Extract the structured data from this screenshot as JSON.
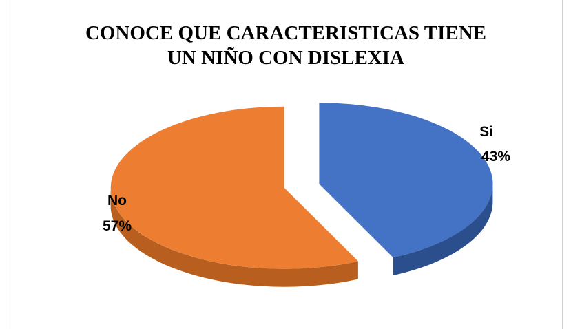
{
  "chart_data": {
    "type": "pie",
    "title": [
      "CONOCE QUE CARACTERISTICAS TIENE",
      "UN NIÑO CON DISLEXIA"
    ],
    "slices": [
      {
        "label": "Si",
        "value": 43,
        "display": "43%",
        "color": "#4472C4",
        "side_color": "#2B4F8C"
      },
      {
        "label": "No",
        "value": 57,
        "display": "57%",
        "color": "#ED7D31",
        "side_color": "#B85E1E"
      }
    ],
    "legend": "none"
  }
}
